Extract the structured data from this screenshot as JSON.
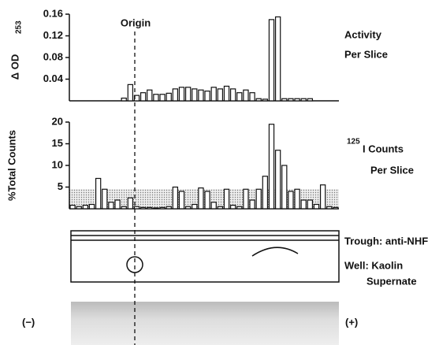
{
  "chart_data": [
    {
      "type": "bar",
      "ylabel": "Δ OD",
      "ylabel_sub": "253",
      "side_label": [
        "Activity",
        "Per Slice"
      ],
      "categories": [
        null,
        null,
        null,
        null,
        null,
        null,
        null,
        null,
        null,
        null,
        null,
        null,
        null,
        null,
        null,
        null,
        null,
        null,
        null,
        null,
        null,
        null,
        null,
        null,
        null,
        null,
        null,
        null,
        null,
        null,
        null,
        null,
        null,
        null,
        null,
        null,
        null,
        null,
        null,
        null,
        null,
        null
      ],
      "values": [
        0,
        0,
        0,
        0,
        0,
        0,
        0,
        0,
        0.005,
        0.03,
        0.01,
        0.015,
        0.02,
        0.012,
        0.012,
        0.014,
        0.022,
        0.025,
        0.025,
        0.022,
        0.02,
        0.018,
        0.025,
        0.022,
        0.027,
        0.022,
        0.015,
        0.02,
        0.015,
        0.004,
        0.003,
        0.15,
        0.155,
        0.004,
        0.004,
        0.004,
        0.004,
        0.004,
        0,
        0,
        0,
        0
      ],
      "ylim": [
        0,
        0.16
      ],
      "yticks": [
        0.04,
        0.08,
        0.12,
        0.16
      ],
      "color": "#ffffff"
    },
    {
      "type": "bar",
      "ylabel": "%Total Counts",
      "side_label_sup": "125",
      "side_label": [
        "I Counts",
        "Per Slice"
      ],
      "categories": [
        null,
        null,
        null,
        null,
        null,
        null,
        null,
        null,
        null,
        null,
        null,
        null,
        null,
        null,
        null,
        null,
        null,
        null,
        null,
        null,
        null,
        null,
        null,
        null,
        null,
        null,
        null,
        null,
        null,
        null,
        null,
        null,
        null,
        null,
        null,
        null,
        null,
        null,
        null,
        null,
        null,
        null
      ],
      "values": [
        0.8,
        0.5,
        0.8,
        1,
        7,
        4.5,
        1.5,
        2,
        0.5,
        2.5,
        0.5,
        0.3,
        0.3,
        0.2,
        0.3,
        0.5,
        5,
        4,
        0.5,
        1,
        4.8,
        4,
        1.5,
        0.5,
        4.5,
        0.8,
        0.5,
        4.5,
        2,
        4.5,
        7.5,
        19.5,
        13.5,
        10,
        4,
        4.5,
        2,
        2,
        1,
        5.5,
        0.5,
        0.3
      ],
      "ylim": [
        0,
        20
      ],
      "yticks": [
        5,
        10,
        15,
        20
      ],
      "shaded_level": 4.5,
      "color": "#ffffff"
    }
  ],
  "origin_label": "Origin",
  "diagram": {
    "trough_label": "Trough: anti-NHF",
    "well_label": [
      "Well: Kaolin",
      "Supernate"
    ]
  },
  "strip": {
    "left_label": "(−)",
    "right_label": "(+)"
  }
}
